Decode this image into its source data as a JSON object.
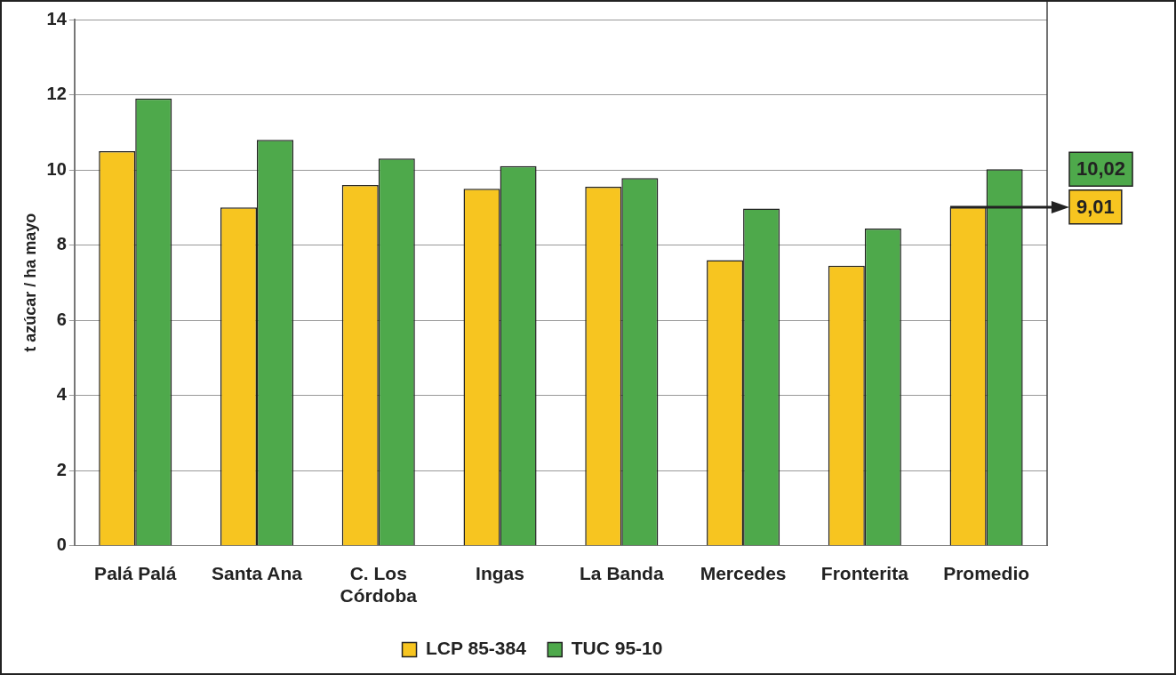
{
  "chart_data": {
    "type": "bar",
    "ylabel": "t azúcar / ha mayo",
    "categories": [
      "Palá Palá",
      "Santa Ana",
      "C. Los Córdoba",
      "Ingas",
      "La Banda",
      "Mercedes",
      "Fronterita",
      "Promedio"
    ],
    "series": [
      {
        "name": "LCP 85-384",
        "color": "#f7c520",
        "values": [
          10.5,
          9.0,
          9.6,
          9.5,
          9.55,
          7.6,
          7.45,
          9.01
        ]
      },
      {
        "name": "TUC 95-10",
        "color": "#4ea94b",
        "values": [
          11.9,
          10.8,
          10.3,
          10.1,
          9.78,
          8.97,
          8.44,
          10.02
        ]
      }
    ],
    "ylim": [
      0,
      14
    ],
    "yticks": [
      0,
      2,
      4,
      6,
      8,
      10,
      12,
      14
    ],
    "grid": "y",
    "legend": "bottom",
    "annotations": [
      "9,01",
      "10,02"
    ]
  }
}
